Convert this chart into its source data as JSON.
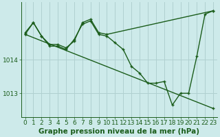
{
  "background_color": "#cdeaea",
  "grid_color": "#b0d0d0",
  "line_color": "#1a5c1a",
  "marker_color": "#1a5c1a",
  "xlabel": "Graphe pression niveau de la mer (hPa)",
  "xlim": [
    -0.5,
    23.5
  ],
  "ylim": [
    1012.3,
    1015.7
  ],
  "yticks": [
    1013,
    1014
  ],
  "xticks": [
    0,
    1,
    2,
    3,
    4,
    5,
    6,
    7,
    8,
    9,
    10,
    11,
    12,
    13,
    14,
    15,
    16,
    17,
    18,
    19,
    20,
    21,
    22,
    23
  ],
  "series1_x": [
    0,
    1,
    2,
    3,
    4,
    5,
    6,
    7,
    8,
    9,
    10,
    11,
    12,
    13,
    14,
    15,
    16,
    17,
    18,
    19,
    20,
    21,
    22,
    23
  ],
  "series1_y": [
    1014.8,
    1015.1,
    1014.7,
    1014.4,
    1014.4,
    1014.3,
    1014.6,
    1015.05,
    1015.15,
    1014.75,
    1014.7,
    1014.5,
    1014.3,
    1013.8,
    1013.6,
    1013.3,
    1013.3,
    1013.35,
    1012.65,
    1013.0,
    1013.0,
    1014.1,
    1015.35,
    1015.45
  ],
  "series2_x": [
    0,
    1,
    2,
    3,
    4,
    5,
    6,
    7,
    8,
    9,
    10,
    23
  ],
  "series2_y": [
    1014.75,
    1015.1,
    1014.7,
    1014.45,
    1014.45,
    1014.35,
    1014.55,
    1015.1,
    1015.2,
    1014.8,
    1014.75,
    1015.45
  ],
  "series3_x": [
    0,
    23
  ],
  "series3_y": [
    1014.75,
    1012.55
  ],
  "font_color": "#1a5c1a",
  "tick_fontsize": 6.5,
  "xlabel_fontsize": 7.5
}
